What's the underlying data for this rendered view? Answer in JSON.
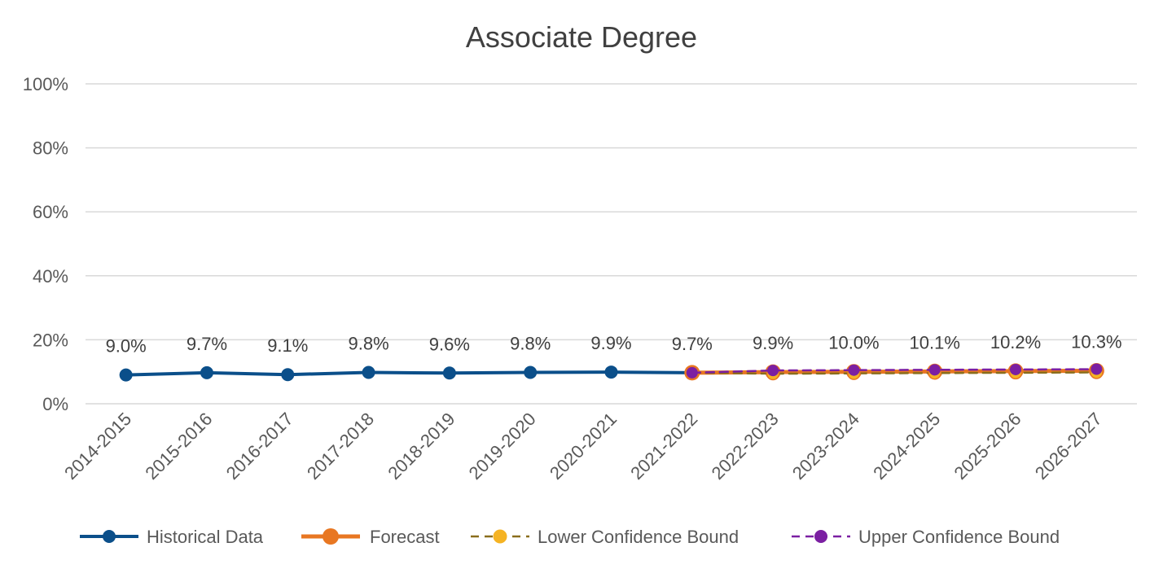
{
  "chart_data": {
    "type": "line",
    "title": "Associate Degree",
    "xlabel": "",
    "ylabel": "",
    "categories": [
      "2014-2015",
      "2015-2016",
      "2016-2017",
      "2017-2018",
      "2018-2019",
      "2019-2020",
      "2020-2021",
      "2021-2022",
      "2022-2023",
      "2023-2024",
      "2024-2025",
      "2025-2026",
      "2026-2027"
    ],
    "yticks": [
      "0%",
      "20%",
      "40%",
      "60%",
      "80%",
      "100%"
    ],
    "ylim": [
      0,
      100
    ],
    "grid": true,
    "legend_position": "bottom",
    "series": [
      {
        "name": "Historical Data",
        "color": "#0b4f8a",
        "style": "solid",
        "values": [
          9.0,
          9.7,
          9.1,
          9.8,
          9.6,
          9.8,
          9.9,
          9.7,
          null,
          null,
          null,
          null,
          null
        ]
      },
      {
        "name": "Forecast",
        "color": "#e87722",
        "style": "solid",
        "values": [
          null,
          null,
          null,
          null,
          null,
          null,
          null,
          9.7,
          9.9,
          10.0,
          10.1,
          10.2,
          10.3
        ]
      },
      {
        "name": "Lower Confidence Bound",
        "color": "#f5b323",
        "line_color": "#8a6d1c",
        "style": "dashed",
        "values": [
          null,
          null,
          null,
          null,
          null,
          null,
          null,
          9.7,
          9.4,
          9.5,
          9.6,
          9.7,
          9.8
        ]
      },
      {
        "name": "Upper Confidence Bound",
        "color": "#7b1fa2",
        "line_color": "#7b1fa2",
        "style": "dashed",
        "values": [
          null,
          null,
          null,
          null,
          null,
          null,
          null,
          9.7,
          10.4,
          10.5,
          10.6,
          10.7,
          10.8
        ]
      }
    ],
    "data_labels": [
      "9.0%",
      "9.7%",
      "9.1%",
      "9.8%",
      "9.6%",
      "9.8%",
      "9.9%",
      "9.7%",
      "9.9%",
      "10.0%",
      "10.1%",
      "10.2%",
      "10.3%"
    ]
  }
}
